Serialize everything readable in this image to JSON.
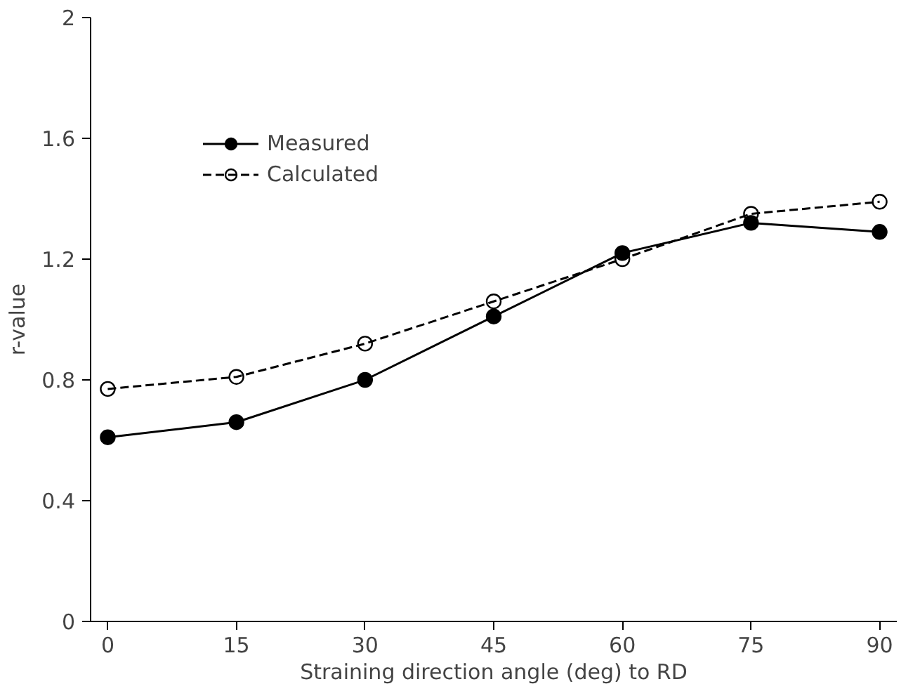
{
  "chart_data": {
    "type": "line",
    "xlabel": "Straining direction angle (deg) to RD",
    "ylabel": "r-value",
    "x": [
      0,
      15,
      30,
      45,
      60,
      75,
      90
    ],
    "series": [
      {
        "name": "Measured",
        "color": "#000000",
        "values": [
          0.61,
          0.66,
          0.8,
          1.01,
          1.22,
          1.32,
          1.29
        ],
        "marker": "circle",
        "line_style": "solid"
      },
      {
        "name": "Calculated",
        "color": "#000000",
        "values": [
          0.77,
          0.81,
          0.92,
          1.06,
          1.2,
          1.35,
          1.39
        ],
        "marker": "circle",
        "line_style": "dashed"
      }
    ],
    "xlim": [
      -2,
      92
    ],
    "xticks": [
      0,
      15,
      30,
      45,
      60,
      75,
      90
    ],
    "ylim": [
      0,
      2
    ],
    "yticks": [
      0,
      0.4,
      0.8,
      1.2,
      1.6,
      2
    ],
    "grid": false,
    "legend": "top left"
  }
}
